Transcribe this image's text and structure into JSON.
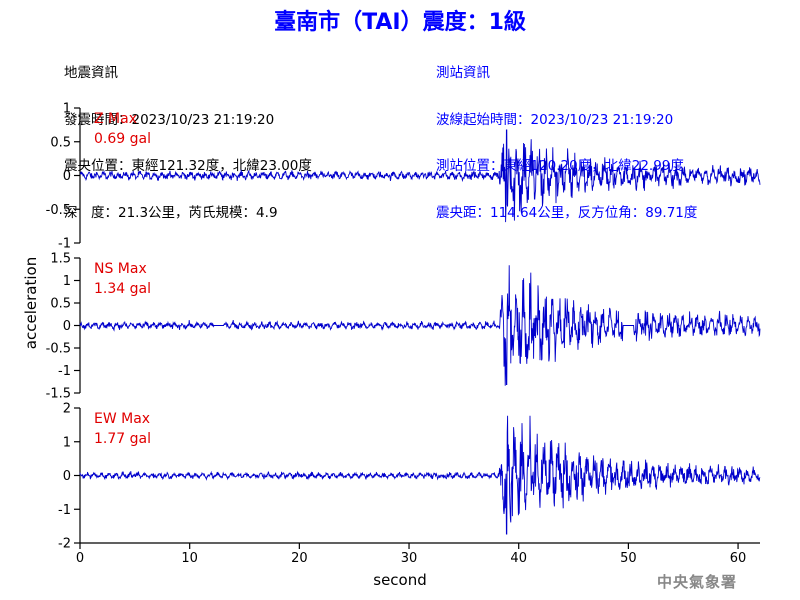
{
  "header": {
    "title": "臺南市（TAI）震度：1級"
  },
  "quake_info": {
    "heading": "地震資訊",
    "time": "發震時間：2023/10/23 21:19:20",
    "epicenter": "震央位置：東經121.32度，北緯23.00度",
    "depth_magnitude": "深　度：21.3公里，芮氏規模：4.9"
  },
  "station_info": {
    "heading": "測站資訊",
    "wave_start": "波線起始時間：2023/10/23 21:19:20",
    "location": "測站位置：東經120.20度，北緯22.99度",
    "distance": "震央距：114.64公里，反方位角：89.71度"
  },
  "credit": "中央氣象署",
  "colors": {
    "title": "#0000ff",
    "trace": "#0000cc",
    "max_label": "#e00000",
    "station_text": "#0000ff",
    "axis": "#000000"
  },
  "chart_data": [
    {
      "type": "line",
      "component": "Z",
      "max_label": "Z Max",
      "max_value": "0.69 gal",
      "ylim": [
        -1,
        1
      ],
      "yticks": [
        -1,
        -0.5,
        0,
        0.5,
        1
      ],
      "ytick_labels": [
        "-1",
        "-0.5",
        "0",
        "0.5",
        "1"
      ],
      "peak": 0.69,
      "noise": 0.06,
      "gaps": []
    },
    {
      "type": "line",
      "component": "NS",
      "max_label": "NS Max",
      "max_value": "1.34 gal",
      "ylim": [
        -1.5,
        1.5
      ],
      "yticks": [
        -1.5,
        -1,
        -0.5,
        0,
        0.5,
        1,
        1.5
      ],
      "ytick_labels": [
        "-1.5",
        "-1",
        "-0.5",
        "0",
        "0.5",
        "1",
        "1.5"
      ],
      "peak": 1.34,
      "noise": 0.08,
      "gaps": [
        [
          12.2,
          13.1
        ],
        [
          49.5,
          50.5
        ]
      ]
    },
    {
      "type": "line",
      "component": "EW",
      "max_label": "EW Max",
      "max_value": "1.77 gal",
      "ylim": [
        -2,
        2
      ],
      "yticks": [
        -2,
        -1,
        0,
        1,
        2
      ],
      "ytick_labels": [
        "-2",
        "-1",
        "0",
        "1",
        "2"
      ],
      "peak": 1.77,
      "noise": 0.09,
      "gaps": []
    }
  ],
  "x_axis": {
    "label": "second",
    "xlim": [
      0,
      62
    ],
    "ticks": [
      0,
      10,
      20,
      30,
      40,
      50,
      60
    ],
    "tick_labels": [
      "0",
      "10",
      "20",
      "30",
      "40",
      "50",
      "60"
    ]
  },
  "y_axis": {
    "label": "acceleration"
  }
}
